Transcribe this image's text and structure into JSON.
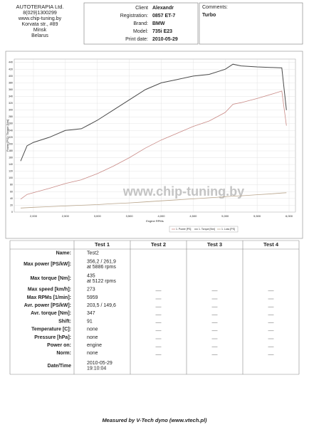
{
  "header": {
    "company": [
      "AUTOTERAPIA Ltd.",
      "8(029)1300299",
      "www.chip-tuning.by",
      "Korvata str., #89",
      "Minsk",
      "Belarus"
    ],
    "info": [
      [
        "Client",
        "Alexandr"
      ],
      [
        "Registration:",
        "0857 ET-7"
      ],
      [
        "Brand:",
        "BMW"
      ],
      [
        "Model:",
        "735i E23"
      ],
      [
        "Print date:",
        "2010-05-29"
      ]
    ],
    "comments_label": "Comments:",
    "comments": "Turbo"
  },
  "chart_data": {
    "type": "line",
    "watermark": "www.chip-tuning.by",
    "x_label": "Engine RPMs",
    "y_label": "Power [PS] / Torque [Nm]",
    "x": [
      1800,
      1900,
      2000,
      2250,
      2500,
      2750,
      3000,
      3250,
      3500,
      3750,
      4000,
      4250,
      4500,
      4750,
      5000,
      5122,
      5250,
      5500,
      5750,
      5886,
      5959
    ],
    "series": [
      {
        "name": "1. Power [PS]",
        "color": "#c98a86",
        "values": [
          38,
          52,
          57,
          70,
          84,
          95,
          113,
          135,
          160,
          188,
          212,
          232,
          252,
          268,
          293,
          317,
          322,
          334,
          348,
          356,
          254
        ]
      },
      {
        "name": "1. Torque [Nm]",
        "color": "#4a4a4a",
        "values": [
          150,
          195,
          205,
          220,
          240,
          245,
          270,
          300,
          330,
          360,
          380,
          390,
          400,
          405,
          420,
          435,
          430,
          427,
          425,
          424,
          300
        ]
      },
      {
        "name": "1. Loss [PS]",
        "color": "#b8a48a",
        "values": [
          12,
          13,
          14,
          16,
          18,
          20,
          22,
          25,
          27,
          30,
          33,
          36,
          39,
          42,
          45,
          47,
          48,
          51,
          54,
          56,
          57
        ]
      }
    ],
    "xlim": [
      1700,
      6100
    ],
    "ylim": [
      0,
      450
    ],
    "xticks": [
      {
        "value": 2000,
        "label": "2,000"
      },
      {
        "value": 2500,
        "label": "2,500"
      },
      {
        "value": 3000,
        "label": "3,000"
      },
      {
        "value": 3500,
        "label": "3,500"
      },
      {
        "value": 4000,
        "label": "4,000"
      },
      {
        "value": 4500,
        "label": "4,500"
      },
      {
        "value": 5000,
        "label": "5,000"
      },
      {
        "value": 5500,
        "label": "5,500"
      },
      {
        "value": 6000,
        "label": "6,000"
      }
    ],
    "yticks": [
      0,
      20,
      40,
      60,
      80,
      100,
      120,
      140,
      160,
      180,
      200,
      220,
      240,
      260,
      280,
      300,
      320,
      340,
      360,
      380,
      400,
      420,
      440
    ],
    "grid": true
  },
  "table": {
    "columns": [
      "Test 1",
      "Test 2",
      "Test 3",
      "Test 4"
    ],
    "rows": [
      {
        "label": "Name:",
        "value": [
          "Test2"
        ]
      },
      {
        "label": "Max power [PS/kW]:",
        "value": [
          "356,2 / 261,9",
          "at 5886 rpms"
        ]
      },
      {
        "label": "Max torque [Nm]:",
        "value": [
          "435",
          "at 5122 rpms"
        ]
      },
      {
        "label": "Max speed [km/h]:",
        "value": [
          "273"
        ]
      },
      {
        "label": "Max RPMs [1/min]:",
        "value": [
          "5959"
        ]
      },
      {
        "label": "Avr. power [PS/kW]:",
        "value": [
          "203,5 / 149,6"
        ]
      },
      {
        "label": "Avr. torque [Nm]:",
        "value": [
          "347"
        ]
      },
      {
        "label": "Shift:",
        "value": [
          "91"
        ]
      },
      {
        "label": "Temperature [C]:",
        "value": [
          "none"
        ]
      },
      {
        "label": "Pressure [hPa]:",
        "value": [
          "none"
        ]
      },
      {
        "label": "Power on:",
        "value": [
          "engine"
        ]
      },
      {
        "label": "Norm:",
        "value": [
          "none"
        ]
      },
      {
        "label": "Date/Time",
        "value": [
          "2010-05-29",
          "19:10:04"
        ]
      }
    ]
  },
  "footer": "Measured by V-Tech dyno (www.vtech.pl)"
}
